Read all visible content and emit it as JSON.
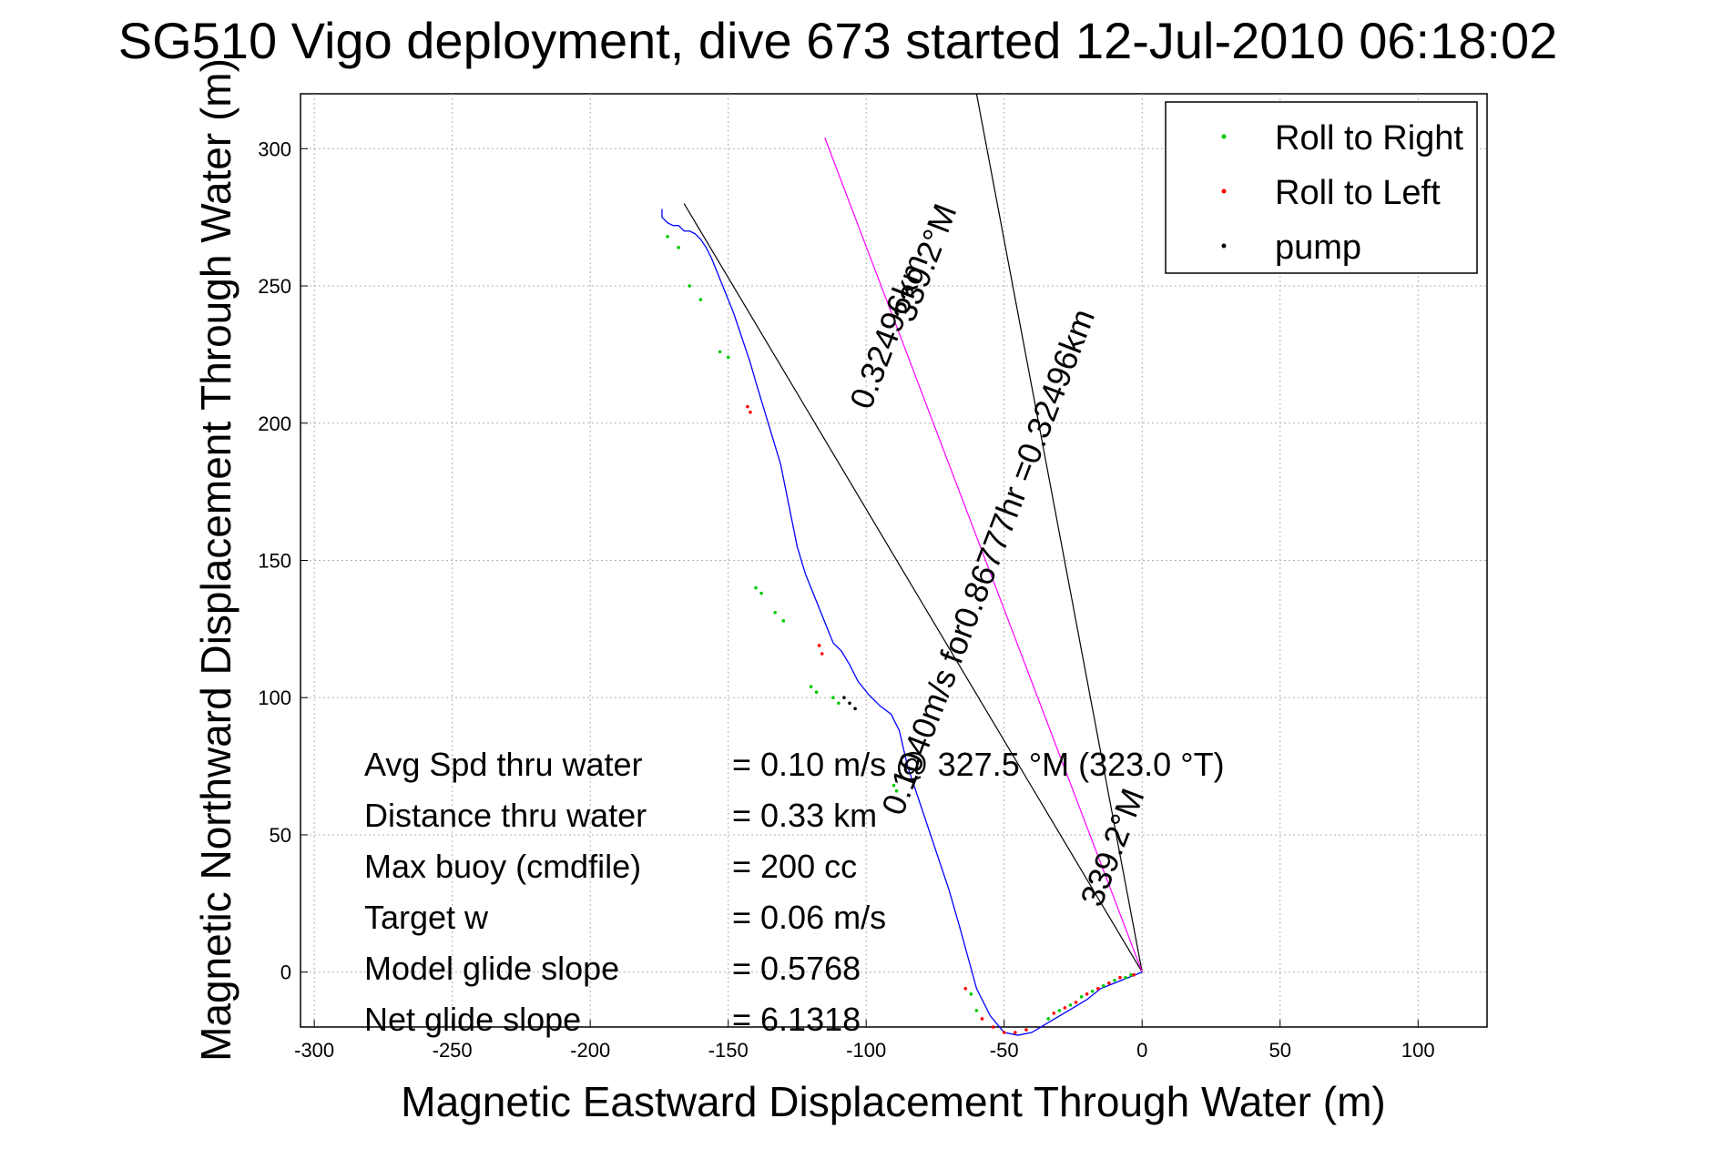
{
  "chart_data": {
    "type": "line",
    "title": "SG510 Vigo deployment, dive 673 started 12-Jul-2010 06:18:02",
    "xlabel": "Magnetic Eastward Displacement Through Water (m)",
    "ylabel": "Magnetic Northward Displacement Through Water (m)",
    "xlim": [
      -305,
      125
    ],
    "ylim": [
      -20,
      320
    ],
    "xticks": [
      -300,
      -250,
      -200,
      -150,
      -100,
      -50,
      0,
      50,
      100
    ],
    "yticks": [
      0,
      50,
      100,
      150,
      200,
      250,
      300
    ],
    "grid": true,
    "legend_position": "top-right",
    "legend": [
      {
        "label": "Roll to Right",
        "color": "#00cc00"
      },
      {
        "label": "Roll to Left",
        "color": "#ff0000"
      },
      {
        "label": "pump",
        "color": "#000000"
      }
    ],
    "track": {
      "color": "#0000ff",
      "x": [
        0,
        -5,
        -10,
        -15,
        -20,
        -25,
        -30,
        -35,
        -40,
        -45,
        -50,
        -55,
        -60,
        -63,
        -66,
        -70,
        -75,
        -80,
        -85,
        -88,
        -91,
        -95,
        -99,
        -103,
        -106,
        -109,
        -112,
        -114,
        -116,
        -118,
        -120,
        -122,
        -125,
        -128,
        -131,
        -134,
        -137,
        -140,
        -142,
        -144,
        -146,
        -148,
        -150,
        -152,
        -154,
        -156,
        -158,
        -160,
        -162,
        -164,
        -166,
        -167,
        -168,
        -170,
        -172,
        -174,
        -174
      ],
      "y": [
        0,
        -2,
        -4,
        -6,
        -10,
        -13,
        -16,
        -19,
        -22,
        -23,
        -22,
        -16,
        -6,
        5,
        16,
        30,
        45,
        60,
        75,
        88,
        94,
        97,
        101,
        106,
        112,
        117,
        120,
        125,
        130,
        135,
        140,
        145,
        155,
        170,
        185,
        195,
        205,
        215,
        222,
        228,
        234,
        240,
        245,
        250,
        255,
        260,
        264,
        267,
        269,
        270,
        270,
        271,
        272,
        272,
        273,
        275,
        278
      ]
    },
    "roll_right_points": {
      "color": "#00cc00",
      "x": [
        -4,
        -6,
        -10,
        -14,
        -18,
        -22,
        -26,
        -30,
        -34,
        -60,
        -62,
        -89,
        -90,
        -110,
        -112,
        -118,
        -120,
        -130,
        -133,
        -138,
        -140,
        -150,
        -153,
        -160,
        -164,
        -168,
        -172
      ],
      "y": [
        -1,
        -2,
        -3,
        -5,
        -7,
        -9,
        -12,
        -14,
        -17,
        -14,
        -8,
        66,
        68,
        98,
        100,
        102,
        104,
        128,
        131,
        138,
        140,
        224,
        226,
        245,
        250,
        264,
        268
      ]
    },
    "roll_left_points": {
      "color": "#ff0000",
      "x": [
        -3,
        -8,
        -12,
        -16,
        -20,
        -24,
        -28,
        -32,
        -42,
        -46,
        -50,
        -54,
        -58,
        -64,
        -116,
        -117,
        -142,
        -143
      ],
      "y": [
        -1,
        -2,
        -4,
        -6,
        -8,
        -11,
        -13,
        -15,
        -21,
        -22,
        -22,
        -20,
        -17,
        -6,
        116,
        119,
        204,
        206
      ]
    },
    "pump_points": {
      "color": "#000000",
      "x": [
        -104,
        -106,
        -108
      ],
      "y": [
        96,
        98,
        100
      ]
    },
    "reference_lines": [
      {
        "name": "net-heading-line",
        "color": "#000000",
        "x": [
          0,
          -166
        ],
        "y": [
          0,
          280
        ]
      },
      {
        "name": "steep-heading-line",
        "color": "#000000",
        "x": [
          0,
          -60
        ],
        "y": [
          0,
          320
        ]
      },
      {
        "name": "current-line",
        "color": "#ff00ff",
        "x": [
          0,
          -115
        ],
        "y": [
          0,
          304
        ]
      }
    ],
    "annotations": [
      {
        "text": "0.32496km",
        "x": -88,
        "y": 232,
        "angle": -69
      },
      {
        "text": "339.2°M",
        "x": -75,
        "y": 257,
        "angle": -69
      },
      {
        "text": "0.1040m/s for0.86777hr =0.32496km",
        "x": -52,
        "y": 148,
        "angle": -69
      },
      {
        "text": "339.2°M",
        "x": -7,
        "y": 44,
        "angle": -69
      }
    ],
    "stats": [
      {
        "label": "Avg Spd thru water",
        "value": "=  0.10 m/s @ 327.5 °M (323.0 °T)"
      },
      {
        "label": "Distance thru water",
        "value": "=  0.33 km"
      },
      {
        "label": "Max buoy (cmdfile)",
        "value": "= 200 cc"
      },
      {
        "label": "Target w",
        "value": "= 0.06 m/s"
      },
      {
        "label": "Model glide slope",
        "value": "= 0.5768"
      },
      {
        "label": "Net glide slope",
        "value": "= 6.1318"
      }
    ]
  }
}
